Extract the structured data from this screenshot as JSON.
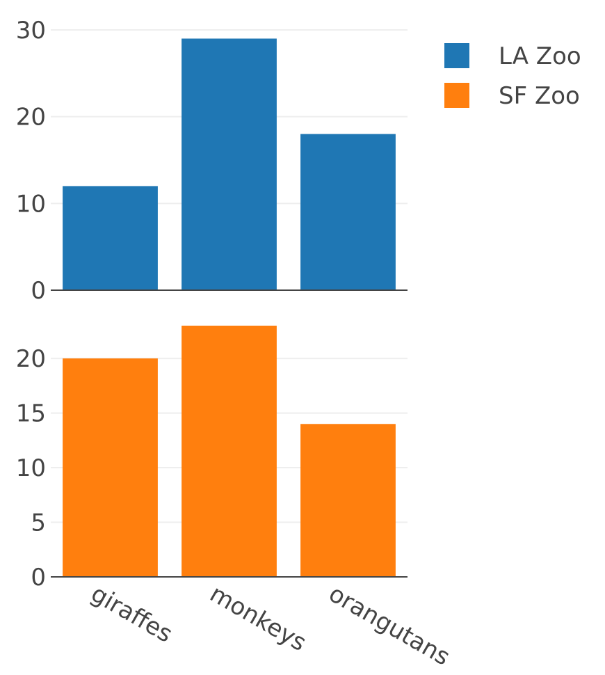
{
  "chart_data": {
    "type": "bar",
    "layout": "stacked-subplots",
    "categories": [
      "giraffes",
      "monkeys",
      "orangutans"
    ],
    "legend_position": "top-right",
    "grid": true,
    "series": [
      {
        "name": "LA Zoo",
        "color": "#1f77b4",
        "values": [
          12,
          29,
          18
        ],
        "ylim": [
          0,
          30
        ],
        "yticks": [
          0,
          10,
          20,
          30
        ]
      },
      {
        "name": "SF Zoo",
        "color": "#ff7f0e",
        "values": [
          20,
          23,
          14
        ],
        "ylim": [
          0,
          23
        ],
        "yticks": [
          0,
          5,
          10,
          15,
          20
        ]
      }
    ]
  }
}
